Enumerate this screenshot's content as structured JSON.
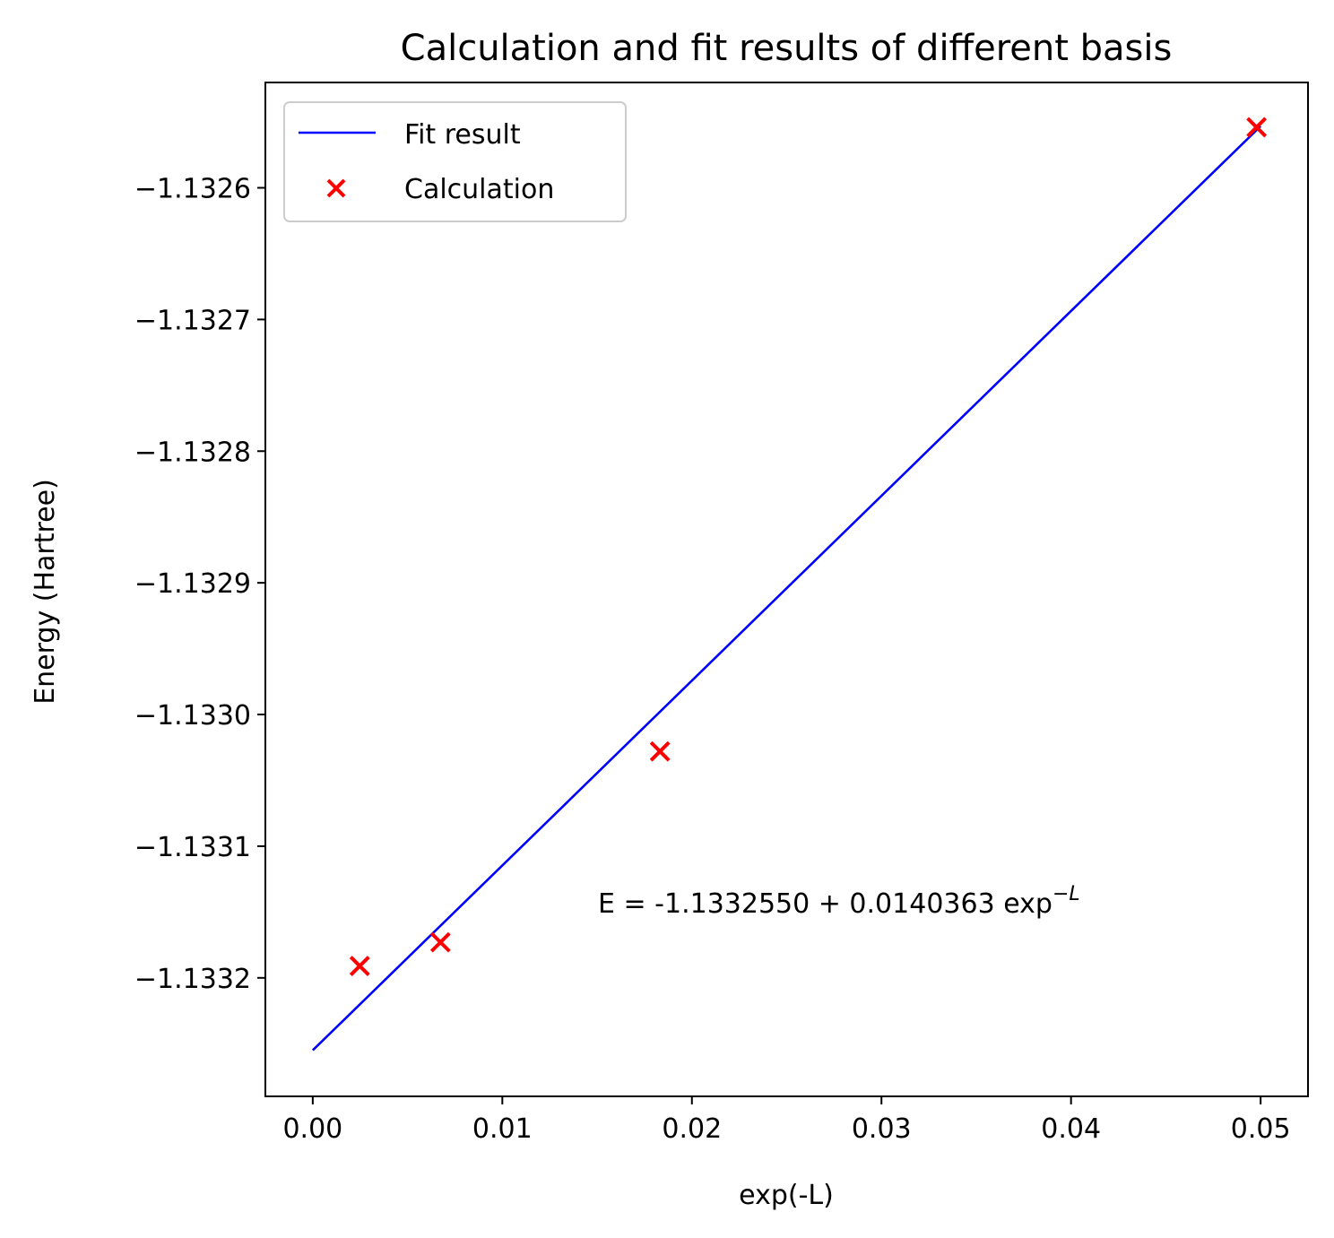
{
  "chart_data": {
    "type": "scatter",
    "title": "Calculation and fit results of different basis",
    "xlabel": "exp(-L)",
    "ylabel": "Energy (Hartree)",
    "xlim": [
      -0.0025,
      0.0525
    ],
    "ylim": [
      -1.13329,
      -1.13252
    ],
    "x_ticks": [
      0.0,
      0.01,
      0.02,
      0.03,
      0.04,
      0.05
    ],
    "x_tick_labels": [
      "0.00",
      "0.01",
      "0.02",
      "0.03",
      "0.04",
      "0.05"
    ],
    "y_ticks": [
      -1.1326,
      -1.1327,
      -1.1328,
      -1.1329,
      -1.133,
      -1.1331,
      -1.1332
    ],
    "y_tick_labels": [
      "−1.1326",
      "−1.1327",
      "−1.1328",
      "−1.1329",
      "−1.1330",
      "−1.1331",
      "−1.1332"
    ],
    "grid": false,
    "legend_position": "top-left",
    "series": [
      {
        "name": "Fit result",
        "kind": "line",
        "color": "#0000ff",
        "intercept": -1.133255,
        "slope": 0.0140363,
        "x": [
          0.0,
          0.05
        ]
      },
      {
        "name": "Calculation",
        "kind": "scatter",
        "marker": "x",
        "color": "#ff0000",
        "points": [
          {
            "x": 0.002479,
            "y": -1.133191
          },
          {
            "x": 0.006738,
            "y": -1.133173
          },
          {
            "x": 0.018316,
            "y": -1.133028
          },
          {
            "x": 0.049787,
            "y": -1.132554
          }
        ]
      }
    ],
    "annotation": {
      "text": "E = -1.1332550 + 0.0140363 exp",
      "superscript": "−L"
    }
  }
}
